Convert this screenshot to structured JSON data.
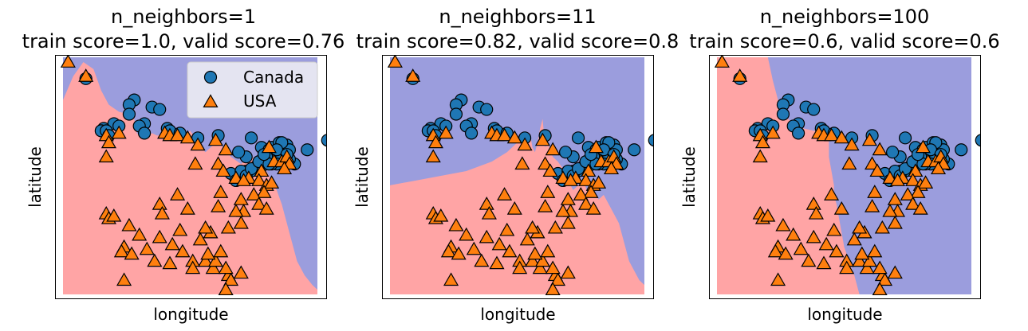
{
  "colors": {
    "canada_region": "#9b9ddd",
    "usa_region": "#ffa4a5",
    "canada_marker": "#1f77b4",
    "usa_marker": "#ff7f0e",
    "marker_edge": "#000000",
    "legend_bg": "#eaeaf2"
  },
  "legend": {
    "entries": [
      {
        "label": "Canada",
        "marker": "circle"
      },
      {
        "label": "USA",
        "marker": "triangle"
      }
    ],
    "location": "upper right of first panel"
  },
  "chart_data": {
    "type": "scatter",
    "description": "k-nearest-neighbors classifier decision regions on city coordinates, three panels",
    "xlabel": "longitude",
    "ylabel": "latitude",
    "xlim": [
      0,
      100
    ],
    "ylim": [
      0,
      100
    ],
    "ticks": "none",
    "points": {
      "canada": [
        [
          9,
          91
        ],
        [
          28,
          82
        ],
        [
          26,
          80
        ],
        [
          35,
          79
        ],
        [
          38,
          78
        ],
        [
          26,
          76
        ],
        [
          32,
          72
        ],
        [
          20,
          72
        ],
        [
          16,
          70
        ],
        [
          30,
          71
        ],
        [
          22,
          71
        ],
        [
          15,
          69
        ],
        [
          17,
          69
        ],
        [
          18,
          67
        ],
        [
          32,
          68
        ],
        [
          41,
          70
        ],
        [
          42,
          69
        ],
        [
          46,
          68
        ],
        [
          53,
          66
        ],
        [
          61,
          67
        ],
        [
          74,
          66
        ],
        [
          78,
          62
        ],
        [
          81,
          61
        ],
        [
          82,
          62
        ],
        [
          83,
          60
        ],
        [
          84,
          59
        ],
        [
          85,
          64
        ],
        [
          86,
          62
        ],
        [
          87,
          63
        ],
        [
          87,
          60
        ],
        [
          88,
          63
        ],
        [
          89,
          61
        ],
        [
          86,
          58
        ],
        [
          84,
          55
        ],
        [
          82,
          55
        ],
        [
          80,
          56
        ],
        [
          78,
          54
        ],
        [
          76,
          54
        ],
        [
          74,
          52
        ],
        [
          72,
          52
        ],
        [
          70,
          50
        ],
        [
          68,
          50
        ],
        [
          66,
          51
        ],
        [
          72,
          58
        ],
        [
          96,
          61
        ],
        [
          104,
          65
        ],
        [
          91,
          55
        ],
        [
          69,
          60
        ],
        [
          68,
          48
        ],
        [
          70,
          52
        ],
        [
          72,
          50
        ],
        [
          74,
          53
        ],
        [
          89,
          57
        ],
        [
          86,
          64
        ],
        [
          84,
          61
        ],
        [
          80,
          58
        ],
        [
          77,
          56
        ],
        [
          81,
          55
        ],
        [
          79,
          59
        ],
        [
          88,
          59
        ]
      ],
      "usa": [
        [
          2,
          98
        ],
        [
          9,
          92
        ],
        [
          17,
          67
        ],
        [
          18,
          64
        ],
        [
          17,
          58
        ],
        [
          22,
          68
        ],
        [
          40,
          68
        ],
        [
          42,
          67
        ],
        [
          45,
          67
        ],
        [
          49,
          66
        ],
        [
          53,
          63
        ],
        [
          60,
          65
        ],
        [
          64,
          61
        ],
        [
          81,
          62
        ],
        [
          83,
          56
        ],
        [
          86,
          56
        ],
        [
          88,
          58
        ],
        [
          89,
          55
        ],
        [
          87,
          53
        ],
        [
          78,
          52
        ],
        [
          73,
          49
        ],
        [
          77,
          48
        ],
        [
          80,
          46
        ],
        [
          82,
          47
        ],
        [
          52,
          55
        ],
        [
          61,
          55
        ],
        [
          63,
          52
        ],
        [
          68,
          49
        ],
        [
          71,
          48
        ],
        [
          79,
          43
        ],
        [
          75,
          42
        ],
        [
          62,
          43
        ],
        [
          45,
          42
        ],
        [
          70,
          40
        ],
        [
          71,
          35
        ],
        [
          77,
          38
        ],
        [
          80,
          36
        ],
        [
          17,
          34
        ],
        [
          18,
          32
        ],
        [
          20,
          33
        ],
        [
          26,
          29
        ],
        [
          38,
          38
        ],
        [
          39,
          34
        ],
        [
          49,
          36
        ],
        [
          61,
          37
        ],
        [
          68,
          35
        ],
        [
          70,
          30
        ],
        [
          65,
          28
        ],
        [
          58,
          26
        ],
        [
          56,
          28
        ],
        [
          54,
          23
        ],
        [
          46,
          27
        ],
        [
          38,
          24
        ],
        [
          24,
          20
        ],
        [
          23,
          18
        ],
        [
          27,
          17
        ],
        [
          33,
          19
        ],
        [
          43,
          21
        ],
        [
          47,
          18
        ],
        [
          51,
          14
        ],
        [
          56,
          14
        ],
        [
          51,
          11
        ],
        [
          59,
          11
        ],
        [
          70,
          9
        ],
        [
          65,
          8
        ],
        [
          66,
          6
        ],
        [
          60,
          14
        ],
        [
          62,
          18
        ],
        [
          64,
          11
        ],
        [
          57,
          17
        ],
        [
          30,
          25
        ],
        [
          36,
          14
        ],
        [
          42,
          13
        ],
        [
          64,
          2
        ],
        [
          24,
          6
        ]
      ]
    },
    "panels": [
      {
        "title_line1": "n_neighbors=1",
        "title_line2": "train score=1.0, valid score=0.76",
        "n_neighbors": 1,
        "train_score": 1.0,
        "valid_score": 0.76,
        "boundary": [
          [
            0,
            82
          ],
          [
            4,
            92
          ],
          [
            8,
            98
          ],
          [
            12,
            95
          ],
          [
            15,
            86
          ],
          [
            18,
            80
          ],
          [
            22,
            77
          ],
          [
            26,
            76
          ],
          [
            28,
            74
          ],
          [
            29,
            68
          ],
          [
            31,
            66
          ],
          [
            33,
            67
          ],
          [
            35,
            68
          ],
          [
            37,
            67
          ],
          [
            40,
            68
          ],
          [
            43,
            67
          ],
          [
            45,
            66
          ],
          [
            47,
            67
          ],
          [
            50,
            69
          ],
          [
            52,
            66
          ],
          [
            54,
            62
          ],
          [
            56,
            60
          ],
          [
            58,
            62
          ],
          [
            60,
            64
          ],
          [
            62,
            63
          ],
          [
            64,
            61
          ],
          [
            66,
            58
          ],
          [
            70,
            55
          ],
          [
            72,
            57
          ],
          [
            74,
            58
          ],
          [
            78,
            56
          ],
          [
            80,
            52
          ],
          [
            82,
            48
          ],
          [
            84,
            44
          ],
          [
            86,
            38
          ],
          [
            88,
            30
          ],
          [
            90,
            22
          ],
          [
            92,
            14
          ],
          [
            95,
            8
          ],
          [
            98,
            4
          ],
          [
            100,
            2
          ]
        ],
        "lower_left_tip": [
          [
            0,
            0
          ],
          [
            0,
            30
          ],
          [
            4,
            25
          ],
          [
            6,
            10
          ],
          [
            7,
            0
          ]
        ]
      },
      {
        "title_line1": "n_neighbors=11",
        "title_line2": "train score=0.82, valid score=0.8",
        "n_neighbors": 11,
        "train_score": 0.82,
        "valid_score": 0.8,
        "boundary": [
          [
            0,
            46
          ],
          [
            10,
            48
          ],
          [
            20,
            50
          ],
          [
            30,
            52
          ],
          [
            40,
            56
          ],
          [
            46,
            60
          ],
          [
            50,
            64
          ],
          [
            53,
            66
          ],
          [
            55,
            68
          ],
          [
            56,
            62
          ],
          [
            57,
            60
          ],
          [
            58,
            64
          ],
          [
            59,
            70
          ],
          [
            60,
            74
          ],
          [
            61,
            62
          ],
          [
            62,
            64
          ],
          [
            64,
            58
          ],
          [
            66,
            56
          ],
          [
            68,
            53
          ],
          [
            70,
            48
          ],
          [
            72,
            44
          ],
          [
            74,
            46
          ],
          [
            76,
            48
          ],
          [
            78,
            42
          ],
          [
            80,
            44
          ],
          [
            82,
            40
          ],
          [
            84,
            42
          ],
          [
            86,
            38
          ],
          [
            88,
            34
          ],
          [
            90,
            30
          ],
          [
            92,
            22
          ],
          [
            94,
            14
          ],
          [
            96,
            10
          ],
          [
            98,
            6
          ],
          [
            100,
            4
          ]
        ]
      },
      {
        "title_line1": "n_neighbors=100",
        "title_line2": "train score=0.6, valid score=0.6",
        "n_neighbors": 100,
        "train_score": 0.6,
        "valid_score": 0.6,
        "boundary": [
          [
            20,
            100
          ],
          [
            22,
            90
          ],
          [
            24,
            82
          ],
          [
            26,
            76
          ],
          [
            30,
            72
          ],
          [
            34,
            70
          ],
          [
            38,
            69
          ],
          [
            42,
            68
          ],
          [
            44,
            66
          ],
          [
            44,
            62
          ],
          [
            44,
            58
          ],
          [
            45,
            52
          ],
          [
            46,
            46
          ],
          [
            46,
            42
          ],
          [
            47,
            38
          ],
          [
            48,
            32
          ],
          [
            49,
            26
          ],
          [
            50,
            20
          ],
          [
            52,
            14
          ],
          [
            54,
            8
          ],
          [
            55,
            4
          ],
          [
            56,
            0
          ]
        ]
      }
    ]
  }
}
